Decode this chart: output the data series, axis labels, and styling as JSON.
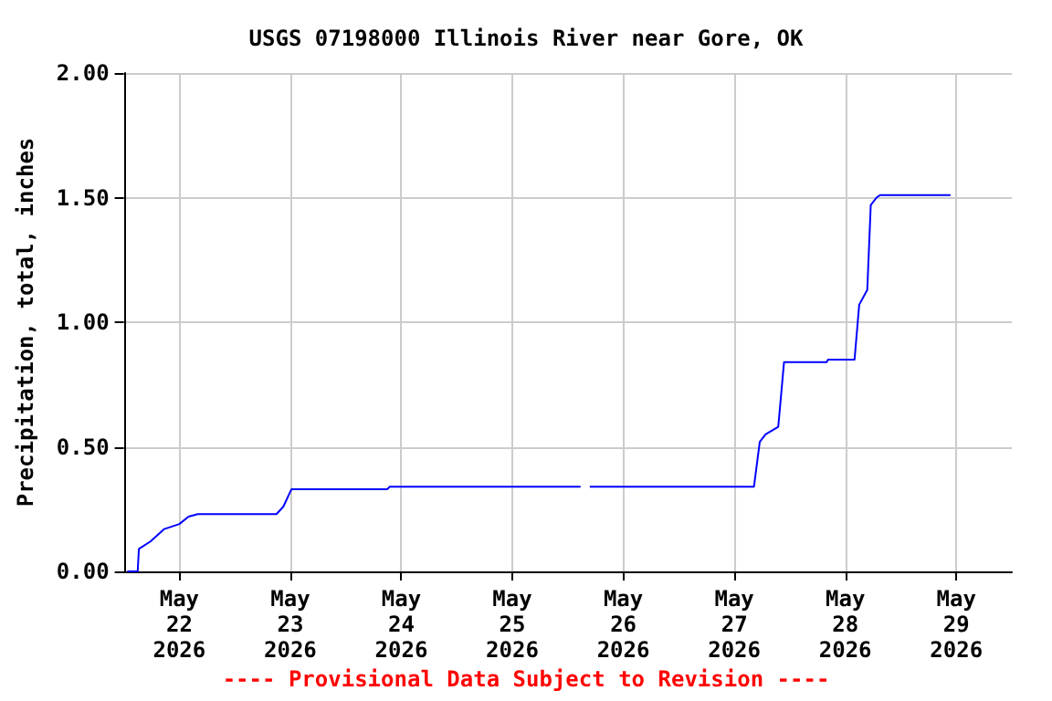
{
  "chart_data": {
    "type": "line",
    "title": "USGS 07198000 Illinois River near Gore, OK",
    "ylabel": "Precipitation, total, inches",
    "annotations": [
      "---- Provisional Data Subject to Revision ----"
    ],
    "x": [
      "2026-05-21T12:45",
      "2026-05-21T15:00",
      "2026-05-21T15:15",
      "2026-05-21T17:45",
      "2026-05-21T20:45",
      "2026-05-22T00:00",
      "2026-05-22T02:00",
      "2026-05-22T04:00",
      "2026-05-22T21:00",
      "2026-05-22T22:30",
      "2026-05-23T00:15",
      "2026-05-23T21:00",
      "2026-05-23T21:30",
      "2026-05-25T14:45",
      "2026-05-25T15:45",
      "2026-05-25T16:45",
      "2026-05-27T04:15",
      "2026-05-27T05:30",
      "2026-05-27T06:45",
      "2026-05-27T09:30",
      "2026-05-27T10:45",
      "2026-05-27T20:00",
      "2026-05-27T20:15",
      "2026-05-28T02:00",
      "2026-05-28T03:00",
      "2026-05-28T04:45",
      "2026-05-28T05:30",
      "2026-05-28T06:45",
      "2026-05-28T07:30",
      "2026-05-28T22:45"
    ],
    "series": [
      {
        "color": "#0000ff",
        "values": [
          0,
          0,
          0.09,
          0.12,
          0.17,
          0.19,
          0.22,
          0.23,
          0.23,
          0.26,
          0.33,
          0.33,
          0.34,
          0.34,
          null,
          0.34,
          0.34,
          0.52,
          0.55,
          0.58,
          0.84,
          0.84,
          0.85,
          0.85,
          1.07,
          1.13,
          1.47,
          1.5,
          1.51,
          1.51
        ]
      }
    ],
    "xlim": [
      "2026-05-21T12:00",
      "2026-05-29T12:00"
    ],
    "xticks": [
      {
        "value": "2026-05-22T00:00",
        "label": "May\n22\n2026"
      },
      {
        "value": "2026-05-23T00:00",
        "label": "May\n23\n2026"
      },
      {
        "value": "2026-05-24T00:00",
        "label": "May\n24\n2026"
      },
      {
        "value": "2026-05-25T00:00",
        "label": "May\n25\n2026"
      },
      {
        "value": "2026-05-26T00:00",
        "label": "May\n26\n2026"
      },
      {
        "value": "2026-05-27T00:00",
        "label": "May\n27\n2026"
      },
      {
        "value": "2026-05-28T00:00",
        "label": "May\n28\n2026"
      },
      {
        "value": "2026-05-29T00:00",
        "label": "May\n29\n2026"
      }
    ],
    "ylim": [
      0,
      2
    ],
    "yticks": [
      {
        "value": 0,
        "label": "0.00"
      },
      {
        "value": 0.5,
        "label": "0.50"
      },
      {
        "value": 1,
        "label": "1.00"
      },
      {
        "value": 1.5,
        "label": "1.50"
      },
      {
        "value": 2,
        "label": "2.00"
      }
    ],
    "grid": true
  }
}
